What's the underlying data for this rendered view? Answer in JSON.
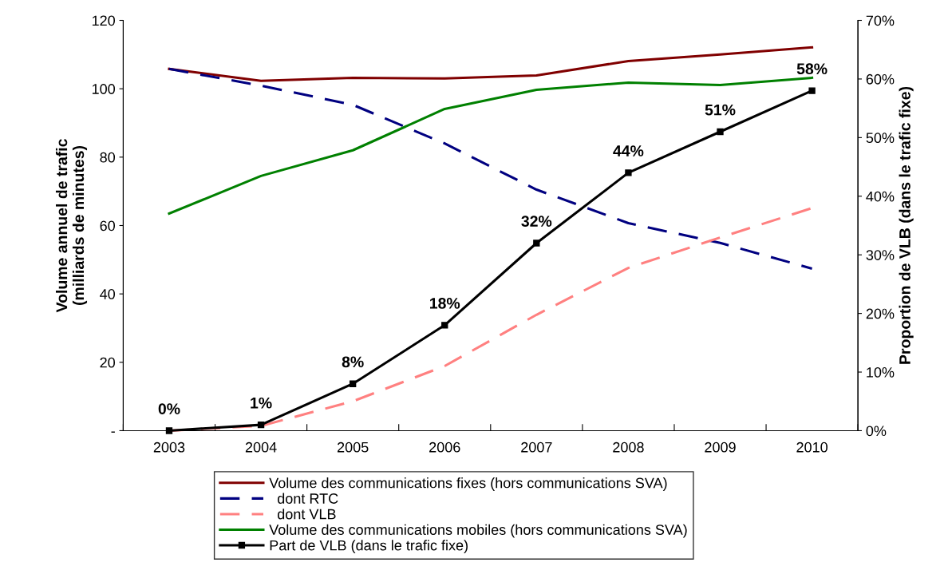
{
  "chart_data": {
    "type": "line",
    "categories": [
      "2003",
      "2004",
      "2005",
      "2006",
      "2007",
      "2008",
      "2009",
      "2010"
    ],
    "ylabel": "Volume annuel de trafic\n(milliards de minutes)",
    "y2label": "Proportion de VLB (dans le trafic fixe)",
    "ylim": [
      0,
      120
    ],
    "yticks": [
      {
        "value": 0,
        "label": "-"
      },
      20,
      40,
      60,
      80,
      100,
      120
    ],
    "y2lim": [
      0,
      70
    ],
    "y2ticks": [
      {
        "value": 0,
        "label": "0%"
      },
      {
        "value": 10,
        "label": "10%"
      },
      {
        "value": 20,
        "label": "20%"
      },
      {
        "value": 30,
        "label": "30%"
      },
      {
        "value": 40,
        "label": "40%"
      },
      {
        "value": 50,
        "label": "50%"
      },
      {
        "value": 60,
        "label": "60%"
      },
      {
        "value": 70,
        "label": "70%"
      }
    ],
    "grid": false,
    "legend": "bottom",
    "series": [
      {
        "name": "Volume des communications fixes (hors communications SVA)",
        "color": "#800000",
        "line_style": "solid",
        "values": [
          105.8,
          102.3,
          103.2,
          103.0,
          103.9,
          108.1,
          110.0,
          112.1
        ]
      },
      {
        "name": "  dont RTC",
        "color": "#000080",
        "line_style": "dashed",
        "values": [
          105.8,
          100.9,
          95.3,
          84.0,
          70.5,
          60.7,
          54.9,
          47.4
        ]
      },
      {
        "name": "  dont VLB",
        "color": "#ff8080",
        "line_style": "dashed",
        "values": [
          0,
          1.4,
          8.6,
          18.9,
          33.9,
          47.6,
          56.5,
          65.1
        ]
      },
      {
        "name": "Volume des communications mobiles (hors communications SVA)",
        "color": "#008000",
        "line_style": "solid",
        "values": [
          63.5,
          74.5,
          82.0,
          94.1,
          99.7,
          101.8,
          101.1,
          103.2
        ]
      },
      {
        "name": "Part de VLB (dans le trafic fixe)",
        "color": "#000000",
        "line_style": "solid",
        "marker": "square",
        "axis": "y2",
        "values": [
          0,
          1,
          8,
          18,
          32,
          44,
          51,
          58
        ],
        "value_labels": [
          "0%",
          "1%",
          "8%",
          "18%",
          "32%",
          "44%",
          "51%",
          "58%"
        ]
      }
    ]
  }
}
